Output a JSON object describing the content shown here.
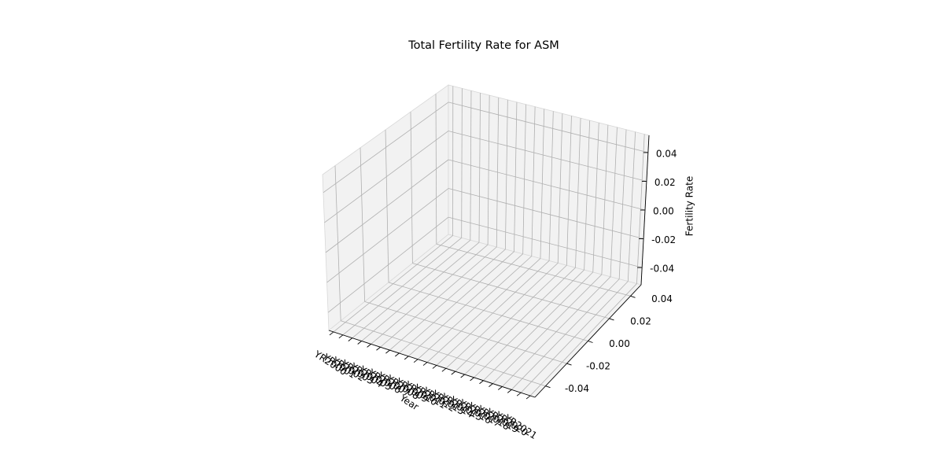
{
  "chart_data": {
    "type": "line3d",
    "title": "Total Fertility Rate for ASM",
    "xlabel": "Year",
    "zlabel": "Fertility Rate",
    "categories": [
      "YR2000",
      "YR2001",
      "YR2002",
      "YR2003",
      "YR2004",
      "YR2005",
      "YR2006",
      "YR2007",
      "YR2008",
      "YR2009",
      "YR2010",
      "YR2011",
      "YR2012",
      "YR2013",
      "YR2014",
      "YR2015",
      "YR2016",
      "YR2017",
      "YR2018",
      "YR2019",
      "YR2020",
      "YR2021"
    ],
    "ylim": [
      -0.05,
      0.05
    ],
    "yticks": [
      -0.04,
      -0.02,
      {
        "value": 0,
        "label": "0.00"
      },
      0.02,
      0.04
    ],
    "zlim": [
      -0.052,
      0.052
    ],
    "zticks": [
      -0.04,
      -0.02,
      {
        "value": 0,
        "label": "0.00"
      },
      0.02,
      0.04
    ],
    "grid": true
  }
}
